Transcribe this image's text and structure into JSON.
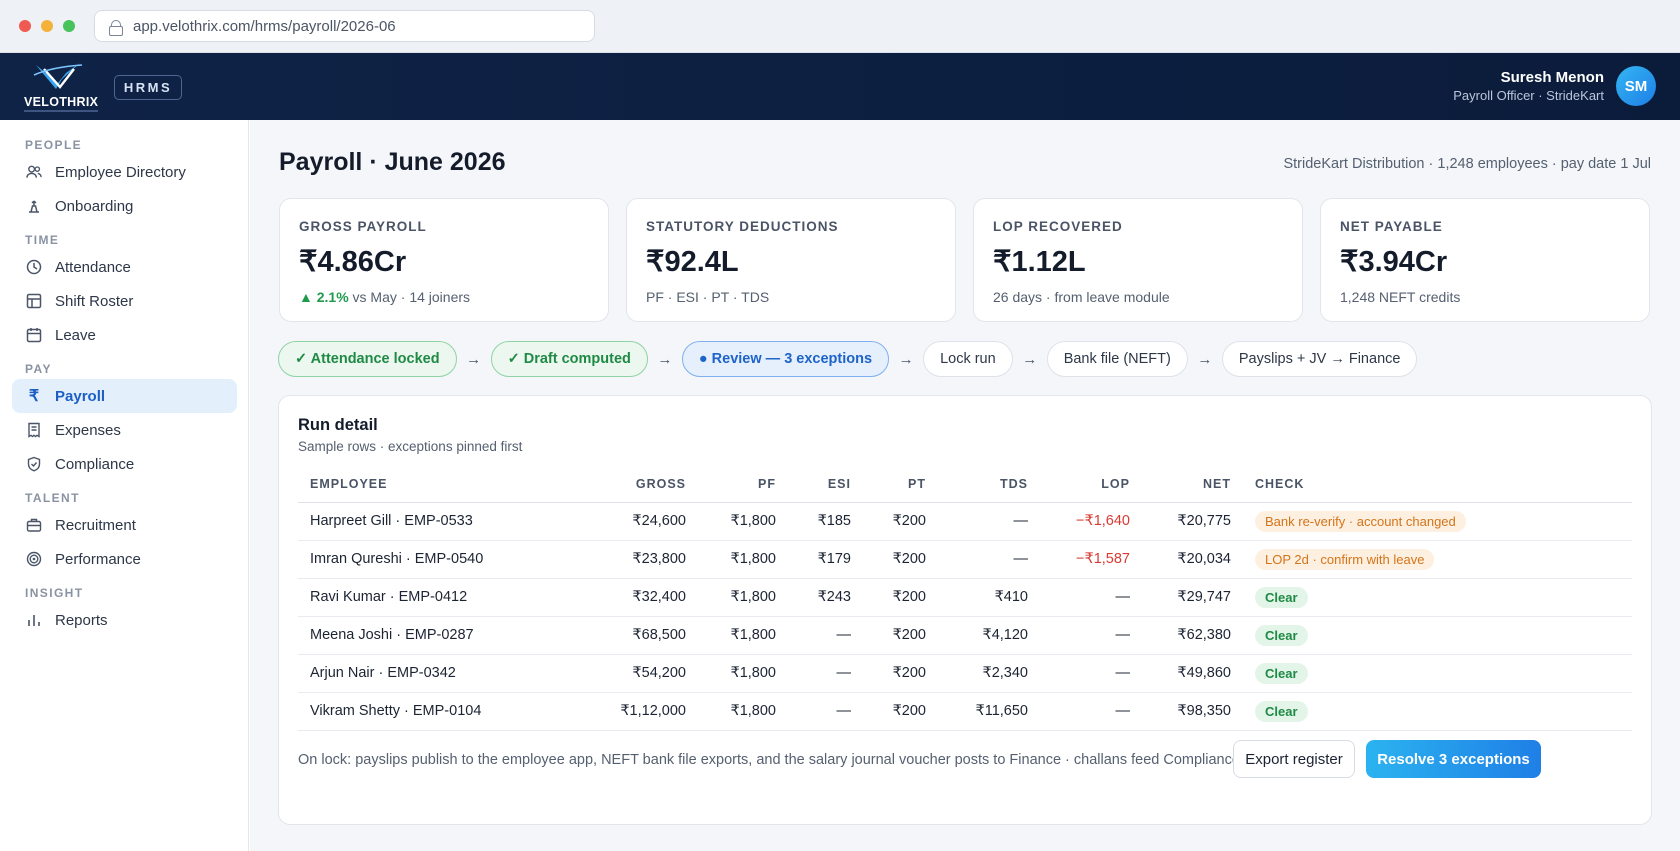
{
  "browser": {
    "url": "app.velothrix.com/hrms/payroll/2026-06"
  },
  "header": {
    "brand": "VELOTHRIX",
    "module_badge": "HRMS",
    "user_name": "Suresh Menon",
    "user_role": "Payroll Officer · StrideKart",
    "user_initials": "SM"
  },
  "sidebar": {
    "sections": {
      "people": "PEOPLE",
      "time": "TIME",
      "pay": "PAY",
      "talent": "TALENT",
      "insight": "INSIGHT"
    },
    "items": [
      {
        "label": "Employee Directory",
        "icon": "people-icon"
      },
      {
        "label": "Onboarding",
        "icon": "onboarding-icon"
      },
      {
        "label": "Attendance",
        "icon": "clock-icon"
      },
      {
        "label": "Shift Roster",
        "icon": "grid-icon"
      },
      {
        "label": "Leave",
        "icon": "calendar-icon"
      },
      {
        "label": "Payroll",
        "icon": "rupee-icon",
        "active": true
      },
      {
        "label": "Expenses",
        "icon": "receipt-icon"
      },
      {
        "label": "Compliance",
        "icon": "shield-icon"
      },
      {
        "label": "Recruitment",
        "icon": "briefcase-icon"
      },
      {
        "label": "Performance",
        "icon": "target-icon"
      },
      {
        "label": "Reports",
        "icon": "bar-chart-icon"
      }
    ]
  },
  "page": {
    "title": "Payroll · June 2026",
    "subtitle": "StrideKart Distribution · 1,248 employees · pay date 1 Jul"
  },
  "kpis": [
    {
      "label": "GROSS PAYROLL",
      "value": "₹4.86Cr",
      "trend": "▲ 2.1%",
      "note": " vs May · 14 joiners"
    },
    {
      "label": "STATUTORY DEDUCTIONS",
      "value": "₹92.4L",
      "note": "PF · ESI · PT · TDS"
    },
    {
      "label": "LOP RECOVERED",
      "value": "₹1.12L",
      "note": "26 days · from leave module"
    },
    {
      "label": "NET PAYABLE",
      "value": "₹3.94Cr",
      "note": "1,248 NEFT credits"
    }
  ],
  "steps": [
    {
      "label": "✓ Attendance locked",
      "state": "done"
    },
    {
      "label": "✓ Draft computed",
      "state": "done"
    },
    {
      "label": "● Review — 3 exceptions",
      "state": "current"
    },
    {
      "label": "Lock run",
      "state": "pending"
    },
    {
      "label": "Bank file (NEFT)",
      "state": "pending"
    },
    {
      "label": "Payslips + JV → Finance",
      "state": "pending"
    }
  ],
  "run_detail": {
    "title": "Run detail",
    "subtitle": "Sample rows · exceptions pinned first",
    "columns": [
      "EMPLOYEE",
      "GROSS",
      "PF",
      "ESI",
      "PT",
      "TDS",
      "LOP",
      "NET",
      "CHECK"
    ],
    "rows": [
      {
        "employee": "Harpreet Gill · EMP-0533",
        "gross": "₹24,600",
        "pf": "₹1,800",
        "esi": "₹185",
        "pt": "₹200",
        "tds": "—",
        "lop": "−₹1,640",
        "net": "₹20,775",
        "check": "Bank re-verify · account changed",
        "status": "warn"
      },
      {
        "employee": "Imran Qureshi · EMP-0540",
        "gross": "₹23,800",
        "pf": "₹1,800",
        "esi": "₹179",
        "pt": "₹200",
        "tds": "—",
        "lop": "−₹1,587",
        "net": "₹20,034",
        "check": "LOP 2d · confirm with leave",
        "status": "warn"
      },
      {
        "employee": "Ravi Kumar · EMP-0412",
        "gross": "₹32,400",
        "pf": "₹1,800",
        "esi": "₹243",
        "pt": "₹200",
        "tds": "₹410",
        "lop": "—",
        "net": "₹29,747",
        "check": "Clear",
        "status": "ok"
      },
      {
        "employee": "Meena Joshi · EMP-0287",
        "gross": "₹68,500",
        "pf": "₹1,800",
        "esi": "—",
        "pt": "₹200",
        "tds": "₹4,120",
        "lop": "—",
        "net": "₹62,380",
        "check": "Clear",
        "status": "ok"
      },
      {
        "employee": "Arjun Nair · EMP-0342",
        "gross": "₹54,200",
        "pf": "₹1,800",
        "esi": "—",
        "pt": "₹200",
        "tds": "₹2,340",
        "lop": "—",
        "net": "₹49,860",
        "check": "Clear",
        "status": "ok"
      },
      {
        "employee": "Vikram Shetty · EMP-0104",
        "gross": "₹1,12,000",
        "pf": "₹1,800",
        "esi": "—",
        "pt": "₹200",
        "tds": "₹11,650",
        "lop": "—",
        "net": "₹98,350",
        "check": "Clear",
        "status": "ok"
      }
    ],
    "footer_note": "On lock: payslips publish to the employee app, NEFT bank file exports, and the salary journal voucher posts to Finance · challans feed Compliance",
    "export_label": "Export register",
    "resolve_label": "Resolve 3 exceptions"
  }
}
